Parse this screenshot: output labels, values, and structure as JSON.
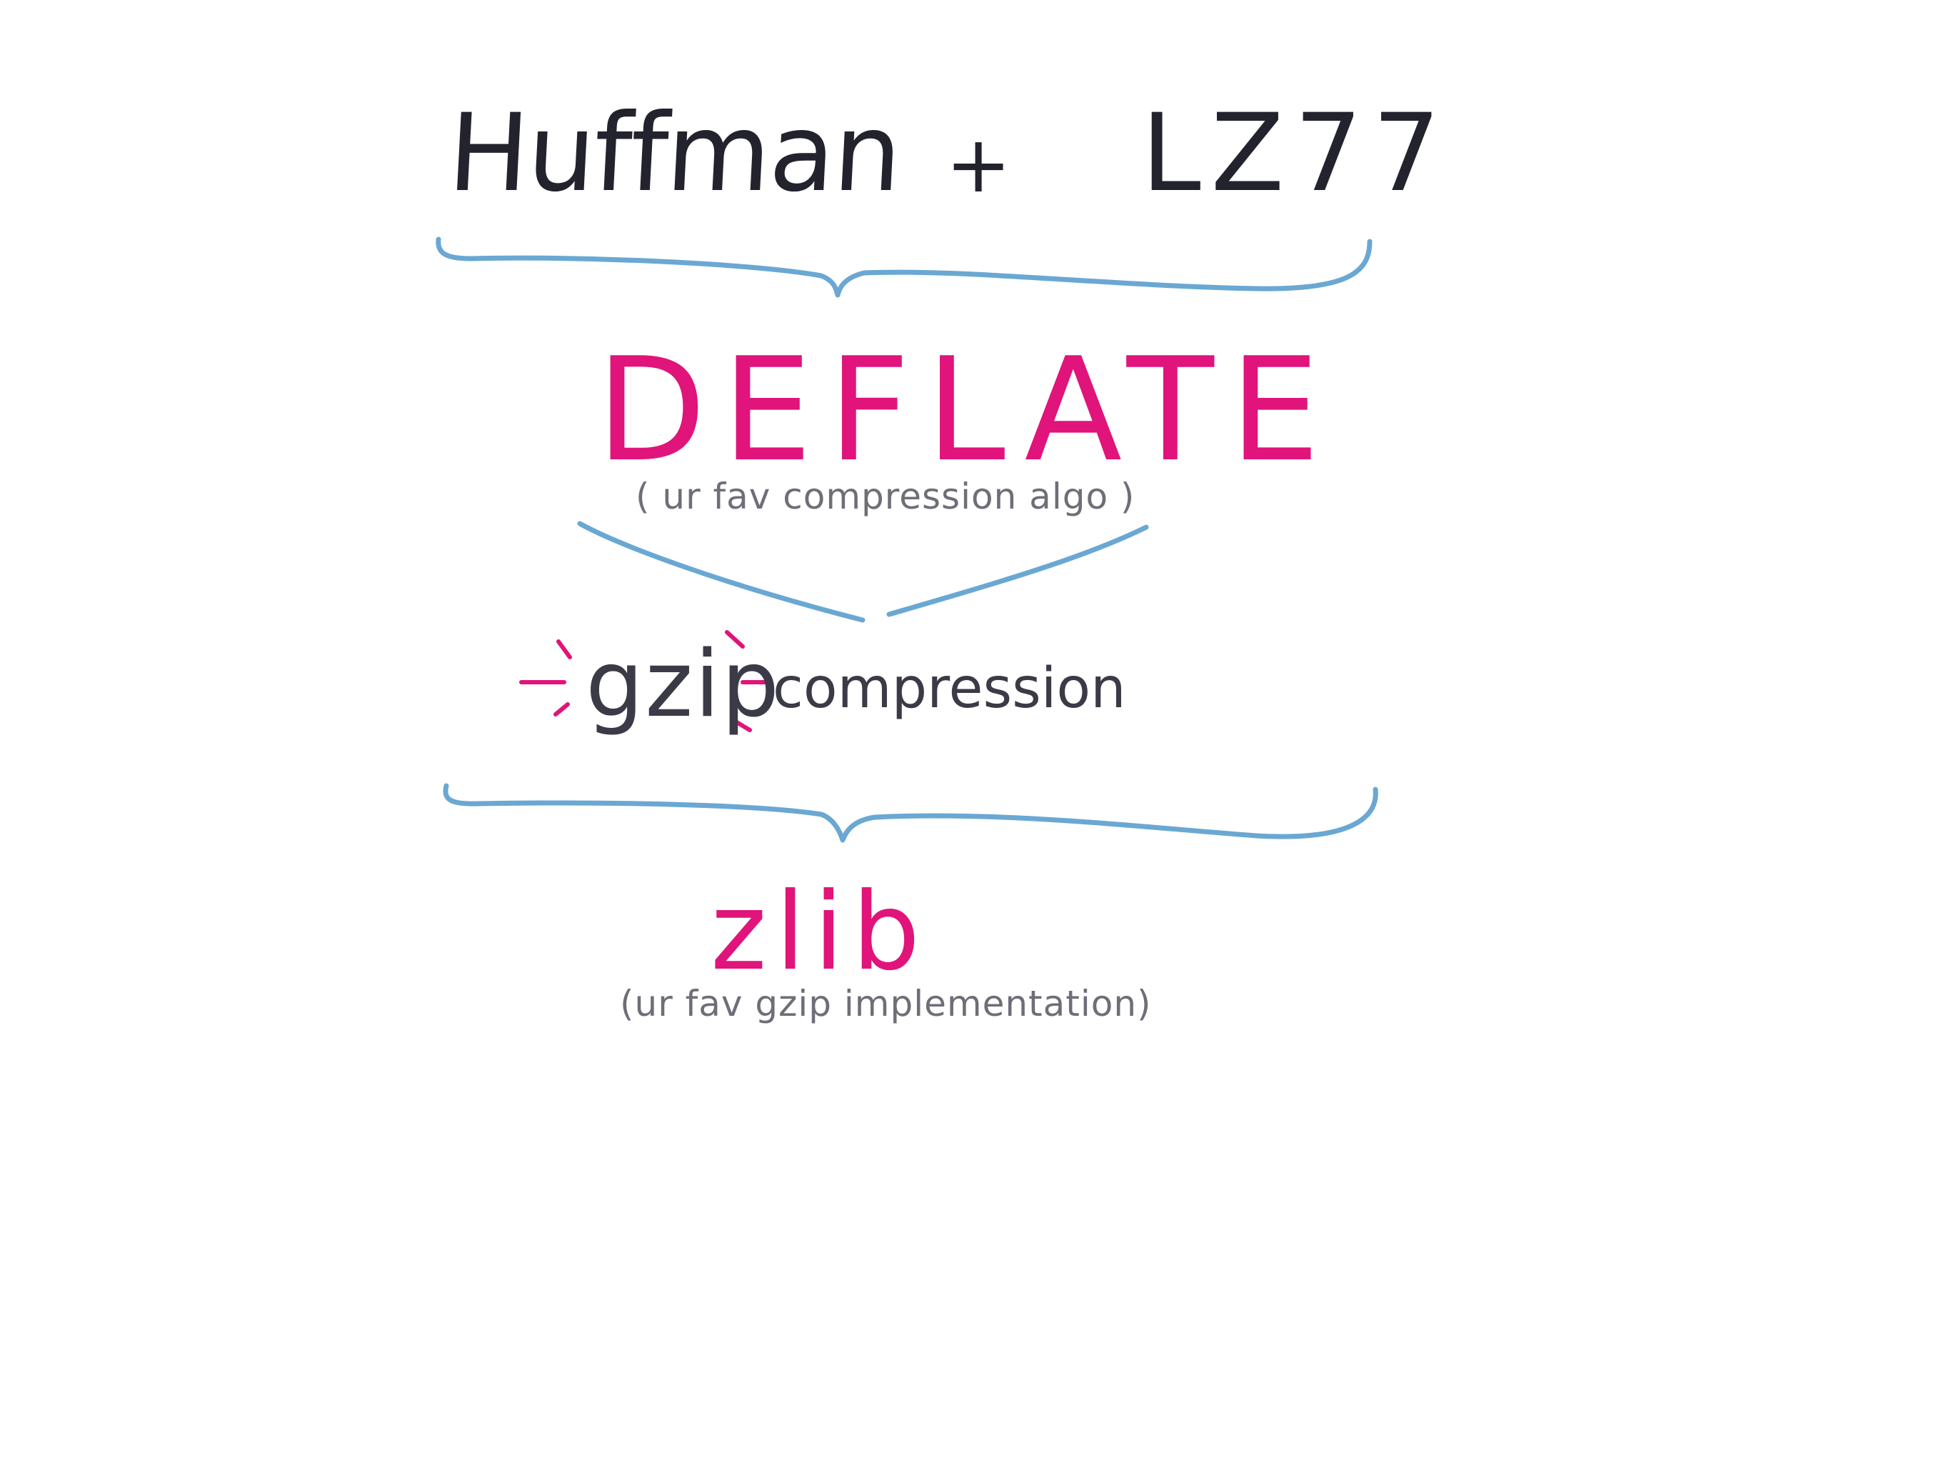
{
  "colors": {
    "ink": "#23232e",
    "accent_pink": "#e0147a",
    "brace_blue": "#6aa8d3",
    "note_gray": "#6e6e78"
  },
  "top_row": {
    "left_term": "Huffman",
    "operator": "+",
    "right_term": "LZ77"
  },
  "deflate": {
    "title": "DEFLATE",
    "note": "( ur fav compression algo )"
  },
  "gzip": {
    "name": "gzip",
    "suffix": "compression"
  },
  "zlib": {
    "title": "zlib",
    "note": "(ur fav gzip implementation)"
  }
}
